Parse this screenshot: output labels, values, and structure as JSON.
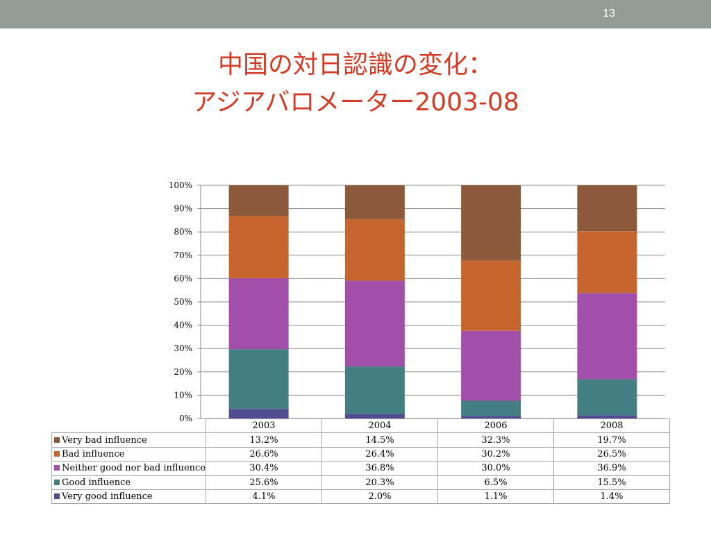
{
  "slide": {
    "number": "13",
    "title_line1": "中国の対日認識の変化：",
    "title_line2": "アジアバロメーター2003-08"
  },
  "colors": {
    "top_bar": "#919d95",
    "title": "#d23b24",
    "very_bad": "#8b5a3a",
    "bad": "#c6662e",
    "neither": "#a34ea8",
    "good": "#437e82",
    "very_good": "#524c91"
  },
  "chart_data": {
    "type": "bar",
    "stacked": true,
    "normalized": true,
    "categories": [
      "2003",
      "2004",
      "2006",
      "2008"
    ],
    "ylim": [
      0,
      100
    ],
    "yticks": [
      "0%",
      "10%",
      "20%",
      "30%",
      "40%",
      "50%",
      "60%",
      "70%",
      "80%",
      "90%",
      "100%"
    ],
    "grid": true,
    "series": [
      {
        "name": "Very bad influence",
        "color": "#8b5a3a",
        "values": [
          13.2,
          14.5,
          32.3,
          19.7
        ],
        "labels": [
          "13.2%",
          "14.5%",
          "32.3%",
          "19.7%"
        ]
      },
      {
        "name": "Bad influence",
        "color": "#c6662e",
        "values": [
          26.6,
          26.4,
          30.2,
          26.5
        ],
        "labels": [
          "26.6%",
          "26.4%",
          "30.2%",
          "26.5%"
        ]
      },
      {
        "name": "Neither good nor bad influence",
        "color": "#a34ea8",
        "values": [
          30.4,
          36.8,
          30.0,
          36.9
        ],
        "labels": [
          "30.4%",
          "36.8%",
          "30.0%",
          "36.9%"
        ]
      },
      {
        "name": "Good influence",
        "color": "#437e82",
        "values": [
          25.6,
          20.3,
          6.5,
          15.5
        ],
        "labels": [
          "25.6%",
          "20.3%",
          "6.5%",
          "15.5%"
        ]
      },
      {
        "name": "Very good influence",
        "color": "#524c91",
        "values": [
          4.1,
          2.0,
          1.1,
          1.4
        ],
        "labels": [
          "4.1%",
          "2.0%",
          "1.1%",
          "1.4%"
        ]
      }
    ]
  }
}
